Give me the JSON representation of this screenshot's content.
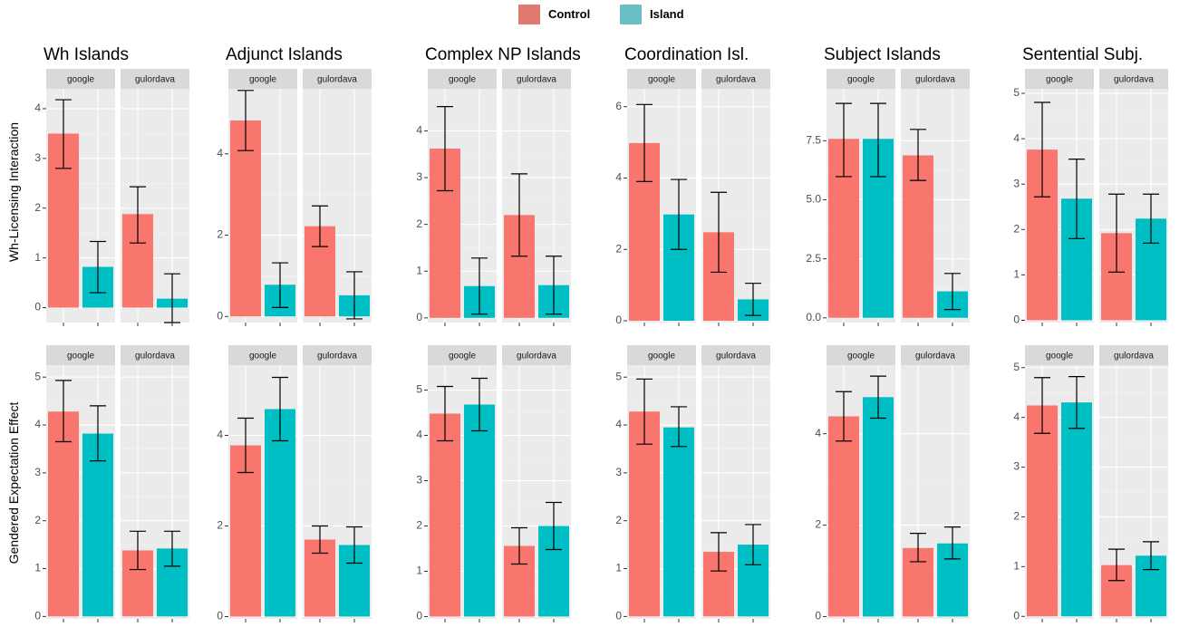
{
  "legend": {
    "items": [
      {
        "label": "Control",
        "color": "#e07a70"
      },
      {
        "label": "Island",
        "color": "#6ac0c4"
      }
    ]
  },
  "colors": {
    "control": "#f8766d",
    "island": "#00bfc4"
  },
  "chart_data": {
    "type": "bar",
    "series_names": [
      "Control",
      "Island"
    ],
    "rows": [
      {
        "ylabel": "Wh-Licensing Interaction",
        "facets": [
          {
            "title": "Wh Islands",
            "ylim": [
              -0.3,
              4.4
            ],
            "ticks": [
              0,
              1,
              2,
              3,
              4
            ],
            "panels": [
              {
                "strip": "google",
                "bars": [
                  {
                    "value": 3.5,
                    "lo": 2.8,
                    "hi": 4.18
                  },
                  {
                    "value": 0.82,
                    "lo": 0.3,
                    "hi": 1.33
                  }
                ]
              },
              {
                "strip": "gulordava",
                "bars": [
                  {
                    "value": 1.88,
                    "lo": 1.3,
                    "hi": 2.43
                  },
                  {
                    "value": 0.18,
                    "lo": -0.3,
                    "hi": 0.68
                  }
                ]
              }
            ]
          },
          {
            "title": "Adjunct Islands",
            "ylim": [
              -0.15,
              5.6
            ],
            "ticks": [
              0,
              2,
              4
            ],
            "panels": [
              {
                "strip": "google",
                "bars": [
                  {
                    "value": 4.82,
                    "lo": 4.08,
                    "hi": 5.56
                  },
                  {
                    "value": 0.78,
                    "lo": 0.22,
                    "hi": 1.32
                  }
                ]
              },
              {
                "strip": "gulordava",
                "bars": [
                  {
                    "value": 2.22,
                    "lo": 1.72,
                    "hi": 2.72
                  },
                  {
                    "value": 0.52,
                    "lo": -0.06,
                    "hi": 1.1
                  }
                ]
              }
            ]
          },
          {
            "title": "Complex NP Islands",
            "ylim": [
              -0.1,
              4.9
            ],
            "ticks": [
              0,
              1,
              2,
              3,
              4
            ],
            "panels": [
              {
                "strip": "google",
                "bars": [
                  {
                    "value": 3.62,
                    "lo": 2.72,
                    "hi": 4.52
                  },
                  {
                    "value": 0.68,
                    "lo": 0.08,
                    "hi": 1.28
                  }
                ]
              },
              {
                "strip": "gulordava",
                "bars": [
                  {
                    "value": 2.2,
                    "lo": 1.32,
                    "hi": 3.08
                  },
                  {
                    "value": 0.7,
                    "lo": 0.08,
                    "hi": 1.32
                  }
                ]
              }
            ]
          },
          {
            "title": "Coordination Isl.",
            "ylim": [
              -0.05,
              6.5
            ],
            "ticks": [
              0,
              2,
              4,
              6
            ],
            "panels": [
              {
                "strip": "google",
                "bars": [
                  {
                    "value": 4.98,
                    "lo": 3.9,
                    "hi": 6.06
                  },
                  {
                    "value": 2.98,
                    "lo": 2.0,
                    "hi": 3.96
                  }
                ]
              },
              {
                "strip": "gulordava",
                "bars": [
                  {
                    "value": 2.48,
                    "lo": 1.36,
                    "hi": 3.6
                  },
                  {
                    "value": 0.6,
                    "lo": 0.15,
                    "hi": 1.05
                  }
                ]
              }
            ]
          },
          {
            "title": "Subject Islands",
            "ylim": [
              -0.2,
              9.7
            ],
            "ticks": [
              0.0,
              2.5,
              5.0,
              7.5
            ],
            "tick_format": "fixed1",
            "panels": [
              {
                "strip": "google",
                "bars": [
                  {
                    "value": 7.58,
                    "lo": 5.98,
                    "hi": 9.08
                  },
                  {
                    "value": 7.58,
                    "lo": 5.98,
                    "hi": 9.08
                  }
                ]
              },
              {
                "strip": "gulordava",
                "bars": [
                  {
                    "value": 6.88,
                    "lo": 5.82,
                    "hi": 7.98
                  },
                  {
                    "value": 1.12,
                    "lo": 0.35,
                    "hi": 1.88
                  }
                ]
              }
            ]
          },
          {
            "title": "Sentential Subj.",
            "ylim": [
              -0.05,
              5.1
            ],
            "ticks": [
              0,
              1,
              2,
              3,
              4,
              5
            ],
            "panels": [
              {
                "strip": "google",
                "bars": [
                  {
                    "value": 3.76,
                    "lo": 2.72,
                    "hi": 4.8
                  },
                  {
                    "value": 2.68,
                    "lo": 1.8,
                    "hi": 3.55
                  }
                ]
              },
              {
                "strip": "gulordava",
                "bars": [
                  {
                    "value": 1.92,
                    "lo": 1.06,
                    "hi": 2.78
                  },
                  {
                    "value": 2.24,
                    "lo": 1.7,
                    "hi": 2.78
                  }
                ]
              }
            ]
          }
        ]
      },
      {
        "ylabel": "Gendered Expectation Effect",
        "facets": [
          {
            "title": "",
            "ylim": [
              -0.05,
              5.25
            ],
            "ticks": [
              0,
              1,
              2,
              3,
              4,
              5
            ],
            "panels": [
              {
                "strip": "google",
                "bars": [
                  {
                    "value": 4.28,
                    "lo": 3.65,
                    "hi": 4.93
                  },
                  {
                    "value": 3.82,
                    "lo": 3.25,
                    "hi": 4.4
                  }
                ]
              },
              {
                "strip": "gulordava",
                "bars": [
                  {
                    "value": 1.38,
                    "lo": 0.98,
                    "hi": 1.78
                  },
                  {
                    "value": 1.42,
                    "lo": 1.05,
                    "hi": 1.78
                  }
                ]
              }
            ]
          },
          {
            "title": "",
            "ylim": [
              -0.05,
              5.55
            ],
            "ticks": [
              0,
              2,
              4
            ],
            "panels": [
              {
                "strip": "google",
                "bars": [
                  {
                    "value": 3.78,
                    "lo": 3.18,
                    "hi": 4.38
                  },
                  {
                    "value": 4.58,
                    "lo": 3.88,
                    "hi": 5.28
                  }
                ]
              },
              {
                "strip": "gulordava",
                "bars": [
                  {
                    "value": 1.7,
                    "lo": 1.4,
                    "hi": 2.0
                  },
                  {
                    "value": 1.58,
                    "lo": 1.18,
                    "hi": 1.98
                  }
                ]
              }
            ]
          },
          {
            "title": "",
            "ylim": [
              -0.05,
              5.55
            ],
            "ticks": [
              0,
              1,
              2,
              3,
              4,
              5
            ],
            "panels": [
              {
                "strip": "google",
                "bars": [
                  {
                    "value": 4.48,
                    "lo": 3.88,
                    "hi": 5.08
                  },
                  {
                    "value": 4.68,
                    "lo": 4.1,
                    "hi": 5.26
                  }
                ]
              },
              {
                "strip": "gulordava",
                "bars": [
                  {
                    "value": 1.56,
                    "lo": 1.16,
                    "hi": 1.96
                  },
                  {
                    "value": 2.0,
                    "lo": 1.48,
                    "hi": 2.52
                  }
                ]
              }
            ]
          },
          {
            "title": "",
            "ylim": [
              -0.05,
              5.25
            ],
            "ticks": [
              0,
              1,
              2,
              3,
              4,
              5
            ],
            "panels": [
              {
                "strip": "google",
                "bars": [
                  {
                    "value": 4.28,
                    "lo": 3.6,
                    "hi": 4.96
                  },
                  {
                    "value": 3.95,
                    "lo": 3.55,
                    "hi": 4.38
                  }
                ]
              },
              {
                "strip": "gulordava",
                "bars": [
                  {
                    "value": 1.35,
                    "lo": 0.95,
                    "hi": 1.75
                  },
                  {
                    "value": 1.5,
                    "lo": 1.08,
                    "hi": 1.92
                  }
                ]
              }
            ]
          },
          {
            "title": "",
            "ylim": [
              -0.05,
              5.5
            ],
            "ticks": [
              0,
              2,
              4
            ],
            "panels": [
              {
                "strip": "google",
                "bars": [
                  {
                    "value": 4.38,
                    "lo": 3.84,
                    "hi": 4.92
                  },
                  {
                    "value": 4.8,
                    "lo": 4.34,
                    "hi": 5.26
                  }
                ]
              },
              {
                "strip": "gulordava",
                "bars": [
                  {
                    "value": 1.5,
                    "lo": 1.2,
                    "hi": 1.82
                  },
                  {
                    "value": 1.6,
                    "lo": 1.26,
                    "hi": 1.96
                  }
                ]
              }
            ]
          },
          {
            "title": "",
            "ylim": [
              -0.05,
              5.05
            ],
            "ticks": [
              0,
              1,
              2,
              3,
              4,
              5
            ],
            "panels": [
              {
                "strip": "google",
                "bars": [
                  {
                    "value": 4.24,
                    "lo": 3.68,
                    "hi": 4.8
                  },
                  {
                    "value": 4.3,
                    "lo": 3.78,
                    "hi": 4.82
                  }
                ]
              },
              {
                "strip": "gulordava",
                "bars": [
                  {
                    "value": 1.03,
                    "lo": 0.72,
                    "hi": 1.35
                  },
                  {
                    "value": 1.22,
                    "lo": 0.94,
                    "hi": 1.5
                  }
                ]
              }
            ]
          }
        ]
      }
    ]
  }
}
